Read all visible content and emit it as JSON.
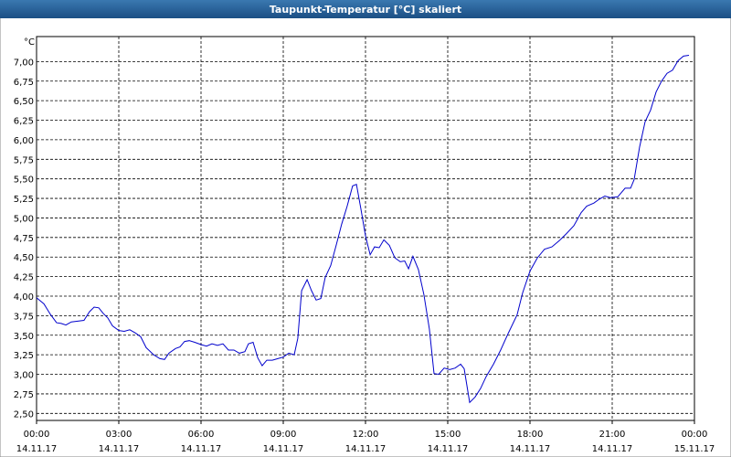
{
  "chart_data": {
    "type": "line",
    "title": "Taupunkt-Temperatur [°C] skaliert",
    "y_unit": "°C",
    "xlim": [
      0,
      24
    ],
    "xticks": [
      {
        "value": 0,
        "label": "00:00"
      },
      {
        "value": 3,
        "label": "03:00"
      },
      {
        "value": 6,
        "label": "06:00"
      },
      {
        "value": 9,
        "label": "09:00"
      },
      {
        "value": 12,
        "label": "12:00"
      },
      {
        "value": 15,
        "label": "15:00"
      },
      {
        "value": 18,
        "label": "18:00"
      },
      {
        "value": 21,
        "label": "21:00"
      },
      {
        "value": 24,
        "label": "00:00"
      }
    ],
    "xtick_dates": [
      "14.11.17",
      "14.11.17",
      "14.11.17",
      "14.11.17",
      "14.11.17",
      "14.11.17",
      "14.11.17",
      "14.11.17",
      "15.11.17"
    ],
    "ylim": [
      2.41,
      7.32
    ],
    "yticks": [
      {
        "value": 2.5,
        "label": "2,50"
      },
      {
        "value": 2.75,
        "label": "2,75"
      },
      {
        "value": 3.0,
        "label": "3,00"
      },
      {
        "value": 3.25,
        "label": "3,25"
      },
      {
        "value": 3.5,
        "label": "3,50"
      },
      {
        "value": 3.75,
        "label": "3,75"
      },
      {
        "value": 4.0,
        "label": "4,00"
      },
      {
        "value": 4.25,
        "label": "4,25"
      },
      {
        "value": 4.5,
        "label": "4,50"
      },
      {
        "value": 4.75,
        "label": "4,75"
      },
      {
        "value": 5.0,
        "label": "5,00"
      },
      {
        "value": 5.25,
        "label": "5,25"
      },
      {
        "value": 5.5,
        "label": "5,50"
      },
      {
        "value": 5.75,
        "label": "5,75"
      },
      {
        "value": 6.0,
        "label": "6,00"
      },
      {
        "value": 6.25,
        "label": "6,25"
      },
      {
        "value": 6.5,
        "label": "6,50"
      },
      {
        "value": 6.75,
        "label": "6,75"
      },
      {
        "value": 7.0,
        "label": "7,00"
      }
    ],
    "grid": true,
    "color": "#0000cc",
    "x": [
      0,
      0.27,
      0.5,
      0.73,
      0.9,
      1.07,
      1.27,
      1.5,
      1.73,
      1.93,
      2.1,
      2.27,
      2.43,
      2.6,
      2.77,
      3,
      3.2,
      3.4,
      3.6,
      3.8,
      4,
      4.27,
      4.5,
      4.67,
      4.83,
      5.07,
      5.23,
      5.4,
      5.57,
      5.77,
      6,
      6.2,
      6.4,
      6.6,
      6.8,
      7,
      7.2,
      7.4,
      7.6,
      7.73,
      7.9,
      8.07,
      8.23,
      8.4,
      8.6,
      8.8,
      9,
      9.2,
      9.4,
      9.53,
      9.67,
      9.87,
      10.03,
      10.2,
      10.37,
      10.53,
      10.73,
      10.93,
      11.13,
      11.33,
      11.53,
      11.67,
      11.83,
      12,
      12.17,
      12.33,
      12.5,
      12.67,
      12.87,
      13.07,
      13.27,
      13.43,
      13.57,
      13.73,
      13.93,
      14.13,
      14.33,
      14.5,
      14.67,
      14.87,
      15.07,
      15.27,
      15.47,
      15.6,
      15.8,
      16,
      16.2,
      16.4,
      16.67,
      16.93,
      17.2,
      17.53,
      17.73,
      18,
      18.27,
      18.53,
      18.8,
      19.07,
      19.33,
      19.6,
      19.87,
      20.07,
      20.33,
      20.53,
      20.73,
      20.93,
      21.2,
      21.47,
      21.67,
      21.8,
      22,
      22.2,
      22.4,
      22.6,
      22.8,
      23,
      23.2,
      23.4,
      23.6,
      23.8
    ],
    "values": [
      3.98,
      3.9,
      3.77,
      3.66,
      3.65,
      3.63,
      3.67,
      3.68,
      3.69,
      3.8,
      3.86,
      3.85,
      3.78,
      3.72,
      3.62,
      3.56,
      3.55,
      3.57,
      3.53,
      3.48,
      3.34,
      3.25,
      3.2,
      3.19,
      3.27,
      3.33,
      3.35,
      3.42,
      3.43,
      3.41,
      3.38,
      3.36,
      3.39,
      3.37,
      3.39,
      3.31,
      3.31,
      3.27,
      3.29,
      3.39,
      3.41,
      3.21,
      3.11,
      3.18,
      3.18,
      3.2,
      3.22,
      3.27,
      3.25,
      3.46,
      4.07,
      4.21,
      4.07,
      3.95,
      3.97,
      4.24,
      4.39,
      4.65,
      4.92,
      5.15,
      5.41,
      5.43,
      5.12,
      4.77,
      4.53,
      4.63,
      4.62,
      4.72,
      4.65,
      4.49,
      4.44,
      4.45,
      4.35,
      4.51,
      4.34,
      4.02,
      3.58,
      3.01,
      3.0,
      3.08,
      3.06,
      3.08,
      3.13,
      3.07,
      2.64,
      2.71,
      2.82,
      2.97,
      3.13,
      3.31,
      3.52,
      3.76,
      4.04,
      4.32,
      4.49,
      4.6,
      4.63,
      4.71,
      4.8,
      4.9,
      5.07,
      5.15,
      5.19,
      5.24,
      5.28,
      5.26,
      5.27,
      5.38,
      5.38,
      5.49,
      5.91,
      6.23,
      6.38,
      6.61,
      6.75,
      6.85,
      6.89,
      7.01,
      7.07,
      7.08
    ]
  }
}
